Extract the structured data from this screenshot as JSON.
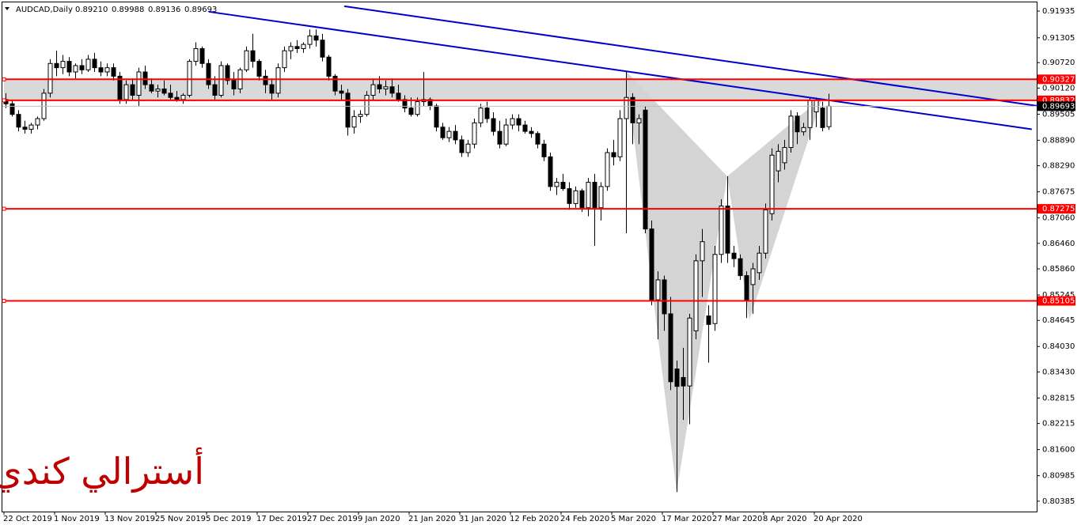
{
  "chart_data": {
    "type": "candlestick",
    "symbol": "AUDCAD,Daily",
    "last_labels": [
      "0.89210",
      "0.89988",
      "0.89136",
      "0.89693"
    ],
    "watermark": "أسترالي كندي",
    "watermark_color": "#c00000",
    "up_color": "#ffffff",
    "down_color": "#000000",
    "ylim": [
      0.8014,
      0.9214
    ],
    "yticks": [
      0.91935,
      0.91305,
      {
        "value": 0.9072,
        "label": "0.90720"
      },
      {
        "value": 0.9012,
        "label": "0.90120"
      },
      0.89505,
      {
        "value": 0.8889,
        "label": "0.88890"
      },
      {
        "value": 0.8829,
        "label": "0.88290"
      },
      0.87675,
      {
        "value": 0.8706,
        "label": "0.87060"
      },
      {
        "value": 0.8646,
        "label": "0.86460"
      },
      {
        "value": 0.8586,
        "label": "0.85860"
      },
      0.85245,
      0.84645,
      {
        "value": 0.8403,
        "label": "0.84030"
      },
      {
        "value": 0.8343,
        "label": "0.83430"
      },
      0.82815,
      0.82215,
      {
        "value": 0.816,
        "label": "0.81600"
      },
      0.80985,
      0.80385
    ],
    "levels": [
      0.90327,
      0.89832,
      0.87275,
      0.85105
    ],
    "level_color": "#ff0000",
    "zone_color": "#d9d9d9",
    "current_price": 0.89693,
    "trendlines": [
      {
        "color": "#0000cc",
        "x": [
          32.1,
          162.1
        ],
        "y": [
          0.9192,
          0.8915
        ]
      },
      {
        "color": "#0000cc",
        "x": [
          53.5,
          163.9
        ],
        "y": [
          0.9205,
          0.8968
        ]
      }
    ],
    "pattern": {
      "color": "#d4d4d4",
      "x": [
        98,
        106,
        114,
        117.5,
        129
      ],
      "y": [
        0.9052,
        0.806,
        0.8804,
        0.8466,
        0.899
      ]
    },
    "categories": [
      "22 Oct 2019",
      null,
      null,
      null,
      null,
      null,
      null,
      null,
      "1 Nov 2019",
      null,
      null,
      null,
      null,
      null,
      null,
      null,
      "13 Nov 2019",
      null,
      null,
      null,
      null,
      null,
      null,
      null,
      "25 Nov 2019",
      null,
      null,
      null,
      null,
      null,
      null,
      null,
      "5 Dec 2019",
      null,
      null,
      null,
      null,
      null,
      null,
      null,
      "17 Dec 2019",
      null,
      null,
      null,
      null,
      null,
      null,
      null,
      "27 Dec 2019",
      null,
      null,
      null,
      null,
      null,
      null,
      null,
      "9 Jan 2020",
      null,
      null,
      null,
      null,
      null,
      null,
      null,
      "21 Jan 2020",
      null,
      null,
      null,
      null,
      null,
      null,
      null,
      "31 Jan 2020",
      null,
      null,
      null,
      null,
      null,
      null,
      null,
      "12 Feb 2020",
      null,
      null,
      null,
      null,
      null,
      null,
      null,
      "24 Feb 2020",
      null,
      null,
      null,
      null,
      null,
      null,
      null,
      "5 Mar 2020",
      null,
      null,
      null,
      null,
      null,
      null,
      null,
      "17 Mar 2020",
      null,
      null,
      null,
      null,
      null,
      null,
      null,
      "27 Mar 2020",
      null,
      null,
      null,
      null,
      null,
      null,
      null,
      "8 Apr 2020",
      null,
      null,
      null,
      null,
      null,
      null,
      null,
      "20 Apr 2020",
      null,
      null
    ],
    "ohlc": [
      [
        0.8985,
        0.9,
        0.8965,
        0.8975
      ],
      [
        0.8975,
        0.8985,
        0.8945,
        0.895
      ],
      [
        0.895,
        0.896,
        0.891,
        0.892
      ],
      [
        0.892,
        0.8935,
        0.8905,
        0.8915
      ],
      [
        0.8915,
        0.893,
        0.8905,
        0.8925
      ],
      [
        0.8925,
        0.8945,
        0.8915,
        0.894
      ],
      [
        0.894,
        0.901,
        0.8935,
        0.9
      ],
      [
        0.9,
        0.908,
        0.899,
        0.907
      ],
      [
        0.907,
        0.91,
        0.904,
        0.906
      ],
      [
        0.906,
        0.909,
        0.9045,
        0.9075
      ],
      [
        0.9075,
        0.9085,
        0.904,
        0.905
      ],
      [
        0.905,
        0.907,
        0.9035,
        0.9065
      ],
      [
        0.9065,
        0.908,
        0.9045,
        0.9055
      ],
      [
        0.9055,
        0.909,
        0.905,
        0.908
      ],
      [
        0.908,
        0.9095,
        0.905,
        0.906
      ],
      [
        0.906,
        0.9075,
        0.904,
        0.905
      ],
      [
        0.905,
        0.907,
        0.904,
        0.906
      ],
      [
        0.906,
        0.907,
        0.903,
        0.904
      ],
      [
        0.904,
        0.905,
        0.8975,
        0.8985
      ],
      [
        0.8985,
        0.903,
        0.8975,
        0.902
      ],
      [
        0.902,
        0.9035,
        0.8985,
        0.8995
      ],
      [
        0.8995,
        0.906,
        0.897,
        0.905
      ],
      [
        0.905,
        0.9065,
        0.901,
        0.902
      ],
      [
        0.902,
        0.9035,
        0.9,
        0.9005
      ],
      [
        0.9005,
        0.902,
        0.899,
        0.901
      ],
      [
        0.901,
        0.903,
        0.8995,
        0.9
      ],
      [
        0.9,
        0.902,
        0.8985,
        0.899
      ],
      [
        0.899,
        0.9005,
        0.898,
        0.8985
      ],
      [
        0.8985,
        0.9,
        0.8975,
        0.8995
      ],
      [
        0.8995,
        0.908,
        0.899,
        0.9075
      ],
      [
        0.9075,
        0.912,
        0.9065,
        0.9105
      ],
      [
        0.9105,
        0.911,
        0.906,
        0.907
      ],
      [
        0.907,
        0.908,
        0.901,
        0.902
      ],
      [
        0.902,
        0.904,
        0.8985,
        0.8995
      ],
      [
        0.8995,
        0.9075,
        0.899,
        0.9065
      ],
      [
        0.9065,
        0.907,
        0.902,
        0.903
      ],
      [
        0.903,
        0.905,
        0.8995,
        0.901
      ],
      [
        0.901,
        0.906,
        0.9,
        0.9055
      ],
      [
        0.9055,
        0.911,
        0.905,
        0.91
      ],
      [
        0.91,
        0.914,
        0.906,
        0.9075
      ],
      [
        0.9075,
        0.908,
        0.903,
        0.904
      ],
      [
        0.904,
        0.9055,
        0.9,
        0.902
      ],
      [
        0.902,
        0.9035,
        0.8985,
        0.9
      ],
      [
        0.9,
        0.907,
        0.899,
        0.906
      ],
      [
        0.906,
        0.911,
        0.905,
        0.91
      ],
      [
        0.91,
        0.912,
        0.908,
        0.911
      ],
      [
        0.911,
        0.9125,
        0.9095,
        0.9105
      ],
      [
        0.9105,
        0.912,
        0.9095,
        0.9115
      ],
      [
        0.9115,
        0.915,
        0.9105,
        0.9135
      ],
      [
        0.9135,
        0.915,
        0.911,
        0.9125
      ],
      [
        0.9125,
        0.914,
        0.9075,
        0.9085
      ],
      [
        0.9085,
        0.909,
        0.903,
        0.904
      ],
      [
        0.904,
        0.9045,
        0.8995,
        0.9005
      ],
      [
        0.9005,
        0.902,
        0.8985,
        0.9
      ],
      [
        0.9,
        0.901,
        0.89,
        0.892
      ],
      [
        0.892,
        0.896,
        0.8905,
        0.8945
      ],
      [
        0.8945,
        0.896,
        0.893,
        0.895
      ],
      [
        0.895,
        0.9005,
        0.8945,
        0.8995
      ],
      [
        0.8995,
        0.9035,
        0.8985,
        0.902
      ],
      [
        0.902,
        0.904,
        0.9,
        0.901
      ],
      [
        0.901,
        0.903,
        0.8995,
        0.9015
      ],
      [
        0.9015,
        0.9035,
        0.899,
        0.9
      ],
      [
        0.9,
        0.902,
        0.898,
        0.8985
      ],
      [
        0.8985,
        0.8995,
        0.8955,
        0.8965
      ],
      [
        0.8965,
        0.899,
        0.8945,
        0.895
      ],
      [
        0.895,
        0.899,
        0.8945,
        0.898
      ],
      [
        0.898,
        0.905,
        0.897,
        0.8985
      ],
      [
        0.8985,
        0.899,
        0.896,
        0.897
      ],
      [
        0.897,
        0.8975,
        0.891,
        0.892
      ],
      [
        0.892,
        0.893,
        0.889,
        0.8895
      ],
      [
        0.8895,
        0.892,
        0.8885,
        0.891
      ],
      [
        0.891,
        0.8925,
        0.888,
        0.889
      ],
      [
        0.889,
        0.89,
        0.885,
        0.886
      ],
      [
        0.886,
        0.889,
        0.885,
        0.888
      ],
      [
        0.888,
        0.894,
        0.887,
        0.893
      ],
      [
        0.893,
        0.8975,
        0.892,
        0.8965
      ],
      [
        0.8965,
        0.898,
        0.893,
        0.894
      ],
      [
        0.894,
        0.8955,
        0.89,
        0.891
      ],
      [
        0.891,
        0.8935,
        0.887,
        0.888
      ],
      [
        0.888,
        0.894,
        0.8875,
        0.8925
      ],
      [
        0.8925,
        0.895,
        0.8915,
        0.894
      ],
      [
        0.894,
        0.895,
        0.891,
        0.8925
      ],
      [
        0.8925,
        0.8935,
        0.8905,
        0.891
      ],
      [
        0.891,
        0.892,
        0.8895,
        0.8905
      ],
      [
        0.8905,
        0.891,
        0.887,
        0.888
      ],
      [
        0.888,
        0.889,
        0.884,
        0.885
      ],
      [
        0.885,
        0.886,
        0.877,
        0.878
      ],
      [
        0.878,
        0.88,
        0.876,
        0.879
      ],
      [
        0.879,
        0.881,
        0.877,
        0.8775
      ],
      [
        0.8775,
        0.879,
        0.8725,
        0.874
      ],
      [
        0.874,
        0.878,
        0.873,
        0.877
      ],
      [
        0.877,
        0.8775,
        0.872,
        0.873
      ],
      [
        0.873,
        0.88,
        0.871,
        0.879
      ],
      [
        0.879,
        0.881,
        0.864,
        0.873
      ],
      [
        0.873,
        0.879,
        0.87,
        0.878
      ],
      [
        0.878,
        0.887,
        0.877,
        0.886
      ],
      [
        0.886,
        0.889,
        0.883,
        0.885
      ],
      [
        0.885,
        0.896,
        0.884,
        0.894
      ],
      [
        0.894,
        0.9052,
        0.867,
        0.899
      ],
      [
        0.899,
        0.9,
        0.888,
        0.893
      ],
      [
        0.893,
        0.895,
        0.888,
        0.894
      ],
      [
        0.896,
        0.897,
        0.867,
        0.868
      ],
      [
        0.868,
        0.87,
        0.85,
        0.8513
      ],
      [
        0.8513,
        0.858,
        0.842,
        0.856
      ],
      [
        0.856,
        0.857,
        0.844,
        0.848
      ],
      [
        0.848,
        0.852,
        0.83,
        0.832
      ],
      [
        0.835,
        0.837,
        0.806,
        0.8309
      ],
      [
        0.833,
        0.84,
        0.823,
        0.831
      ],
      [
        0.831,
        0.848,
        0.822,
        0.847
      ],
      [
        0.844,
        0.862,
        0.842,
        0.8605
      ],
      [
        0.8605,
        0.868,
        0.852,
        0.865
      ],
      [
        0.8475,
        0.85,
        0.8365,
        0.8455
      ],
      [
        0.8457,
        0.864,
        0.844,
        0.862
      ],
      [
        0.862,
        0.875,
        0.86,
        0.8734
      ],
      [
        0.8734,
        0.8804,
        0.86,
        0.8623
      ],
      [
        0.8623,
        0.864,
        0.859,
        0.861
      ],
      [
        0.861,
        0.862,
        0.856,
        0.857
      ],
      [
        0.857,
        0.858,
        0.847,
        0.8513
      ],
      [
        0.8549,
        0.86,
        0.848,
        0.8586
      ],
      [
        0.8577,
        0.864,
        0.856,
        0.8623
      ],
      [
        0.8623,
        0.874,
        0.861,
        0.8725
      ],
      [
        0.8716,
        0.887,
        0.87,
        0.8854
      ],
      [
        0.8817,
        0.888,
        0.879,
        0.8863
      ],
      [
        0.8836,
        0.889,
        0.882,
        0.8872
      ],
      [
        0.8872,
        0.896,
        0.886,
        0.8946
      ],
      [
        0.8946,
        0.8955,
        0.888,
        0.8909
      ],
      [
        0.8909,
        0.893,
        0.89,
        0.8919
      ],
      [
        0.8919,
        0.899,
        0.889,
        0.8983
      ],
      [
        0.8956,
        0.899,
        0.892,
        0.8983
      ],
      [
        0.8965,
        0.898,
        0.891,
        0.8919
      ],
      [
        0.8921,
        0.89988,
        0.89136,
        0.89693
      ]
    ]
  }
}
